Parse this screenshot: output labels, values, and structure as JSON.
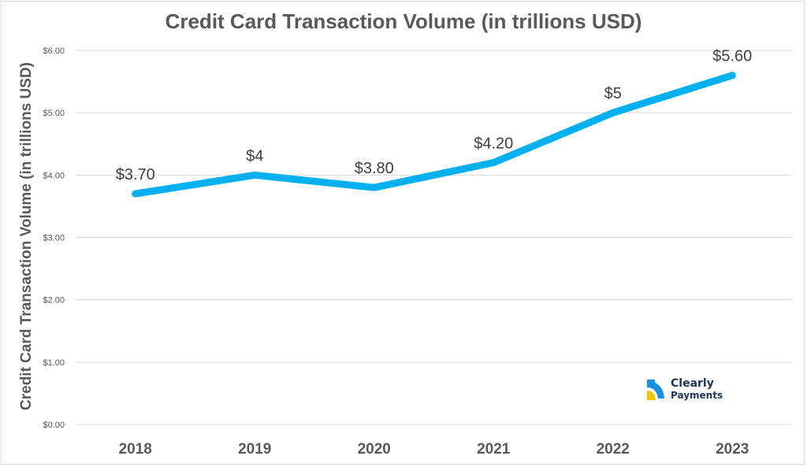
{
  "chart_data": {
    "type": "line",
    "title": "Credit Card Transaction Volume (in trillions USD)",
    "ylabel": "Credit Card Transaction Volume (in trillions USD)",
    "xlabel": "",
    "categories": [
      "2018",
      "2019",
      "2020",
      "2021",
      "2022",
      "2023"
    ],
    "series": [
      {
        "values": [
          3.7,
          4.0,
          3.8,
          4.2,
          5.0,
          5.6
        ],
        "data_labels": [
          "$3.70",
          "$4",
          "$3.80",
          "$4.20",
          "$5",
          "$5.60"
        ],
        "color": "#00b0f0"
      }
    ],
    "ylim": [
      0,
      6
    ],
    "y_ticks": [
      "$0.00",
      "$1.00",
      "$2.00",
      "$3.00",
      "$4.00",
      "$5.00",
      "$6.00"
    ],
    "y_tick_values": [
      0,
      1,
      2,
      3,
      4,
      5,
      6
    ],
    "grid": true,
    "legend": "none"
  },
  "logo": {
    "line1": "Clearly",
    "line2": "Payments",
    "color_blue": "#1a8fe3",
    "color_yellow": "#f5c400",
    "color_text": "#1f3554"
  }
}
